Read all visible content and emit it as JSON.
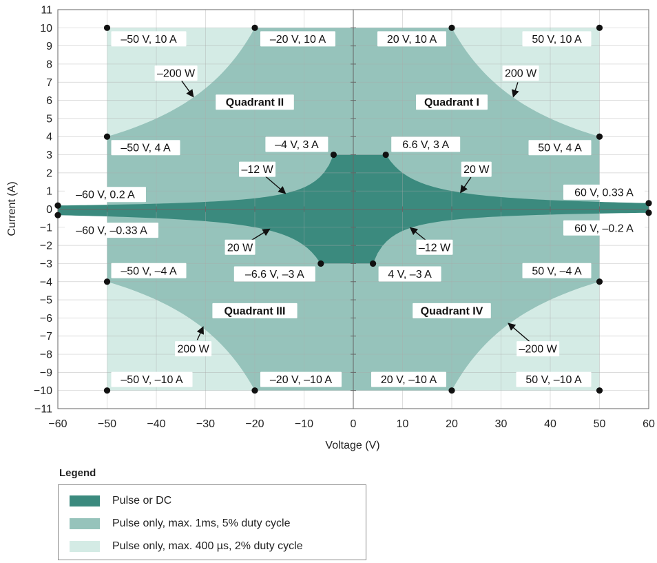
{
  "chart_data": {
    "type": "area",
    "xlabel": "Voltage (V)",
    "ylabel": "Current (A)",
    "xlim": [
      -60,
      60
    ],
    "ylim": [
      -11,
      11
    ],
    "xticks": [
      -60,
      -50,
      -40,
      -30,
      -20,
      -10,
      0,
      10,
      20,
      30,
      40,
      50,
      60
    ],
    "yticks": [
      -11,
      -10,
      -9,
      -8,
      -7,
      -6,
      -5,
      -4,
      -3,
      -2,
      -1,
      0,
      1,
      2,
      3,
      4,
      5,
      6,
      7,
      8,
      9,
      10,
      11
    ],
    "grid": true,
    "colors": {
      "dark": "#3b8a7e",
      "mid": "#96c3bb",
      "light": "#d4ebe5",
      "axis": "#666666",
      "grid": "#aaaaaa",
      "point": "#111111"
    },
    "regions": [
      {
        "name": "Pulse or DC",
        "color": "dark",
        "power_limits": [
          {
            "quadrant": "I",
            "watts": 20
          },
          {
            "quadrant": "II",
            "watts": -12
          },
          {
            "quadrant": "III",
            "watts": 20
          },
          {
            "quadrant": "IV",
            "watts": -12
          }
        ],
        "current_limit": 3,
        "voltage_limit": 60
      },
      {
        "name": "Pulse only, max. 1ms, 5% duty cycle",
        "color": "mid",
        "power_limits": [
          {
            "quadrant": "all",
            "watts": 200
          }
        ],
        "current_limit": 10,
        "voltage_limit": 50
      },
      {
        "name": "Pulse only, max. 400 µs, 2% duty cycle",
        "color": "light",
        "current_limit": 10,
        "voltage_limit": 50
      }
    ],
    "points": [
      {
        "x": -50,
        "y": 10,
        "label": "–50 V, 10 A"
      },
      {
        "x": -20,
        "y": 10,
        "label": "–20 V, 10 A"
      },
      {
        "x": 20,
        "y": 10,
        "label": "20 V, 10 A"
      },
      {
        "x": 50,
        "y": 10,
        "label": "50 V, 10 A"
      },
      {
        "x": -50,
        "y": 4,
        "label": "–50 V, 4 A"
      },
      {
        "x": 50,
        "y": 4,
        "label": "50 V, 4 A"
      },
      {
        "x": -4,
        "y": 3,
        "label": "–4 V, 3 A"
      },
      {
        "x": 6.6,
        "y": 3,
        "label": "6.6 V, 3 A"
      },
      {
        "x": -60,
        "y": 0.2,
        "label": "–60 V, 0.2 A"
      },
      {
        "x": -60,
        "y": -0.33,
        "label": "–60 V, –0.33 A"
      },
      {
        "x": 60,
        "y": 0.33,
        "label": "60 V, 0.33 A"
      },
      {
        "x": 60,
        "y": -0.2,
        "label": "60 V, –0.2 A"
      },
      {
        "x": -6.6,
        "y": -3,
        "label": "–6.6 V, –3 A"
      },
      {
        "x": 4,
        "y": -3,
        "label": "4 V, –3 A"
      },
      {
        "x": -50,
        "y": -4,
        "label": "–50 V, –4 A"
      },
      {
        "x": 50,
        "y": -4,
        "label": "50 V, –4 A"
      },
      {
        "x": -50,
        "y": -10,
        "label": "–50 V, –10 A"
      },
      {
        "x": -20,
        "y": -10,
        "label": "–20 V, –10 A"
      },
      {
        "x": 20,
        "y": -10,
        "label": "20 V, –10 A"
      },
      {
        "x": 50,
        "y": -10,
        "label": "50 V, –10 A"
      }
    ],
    "annotations": [
      {
        "text": "Quadrant I",
        "x": 20,
        "y": 5.9,
        "bold": true
      },
      {
        "text": "Quadrant II",
        "x": -20,
        "y": 5.9,
        "bold": true
      },
      {
        "text": "Quadrant III",
        "x": -20,
        "y": -5.6,
        "bold": true
      },
      {
        "text": "Quadrant IV",
        "x": 20,
        "y": -5.6,
        "bold": true
      },
      {
        "text": "200 W",
        "x": 34,
        "y": 7.5,
        "arrow_to": [
          32.5,
          6.2
        ]
      },
      {
        "text": "–200 W",
        "x": -36,
        "y": 7.5,
        "arrow_to": [
          -32.5,
          6.2
        ]
      },
      {
        "text": "20 W",
        "x": 25,
        "y": 2.2,
        "arrow_to": [
          21.8,
          0.92
        ]
      },
      {
        "text": "–12 W",
        "x": -19.5,
        "y": 2.2,
        "arrow_to": [
          -13.8,
          0.87
        ]
      },
      {
        "text": "20 W",
        "x": -23,
        "y": -2.1,
        "arrow_to": [
          -17,
          -1.1
        ]
      },
      {
        "text": "–12 W",
        "x": 16.5,
        "y": -2.1,
        "arrow_to": [
          11.6,
          -1.03
        ]
      },
      {
        "text": "200 W",
        "x": -32.5,
        "y": -7.7,
        "arrow_to": [
          -30.5,
          -6.5
        ]
      },
      {
        "text": "–200 W",
        "x": 37.5,
        "y": -7.7,
        "arrow_to": [
          31.5,
          -6.3
        ]
      }
    ],
    "legend": {
      "title": "Legend",
      "placement": "bottom-left",
      "entries": [
        {
          "label": "Pulse or DC",
          "color": "dark"
        },
        {
          "label": "Pulse only, max. 1ms, 5% duty cycle",
          "color": "mid"
        },
        {
          "label": "Pulse only, max. 400 µs, 2% duty cycle",
          "color": "light"
        }
      ]
    }
  }
}
